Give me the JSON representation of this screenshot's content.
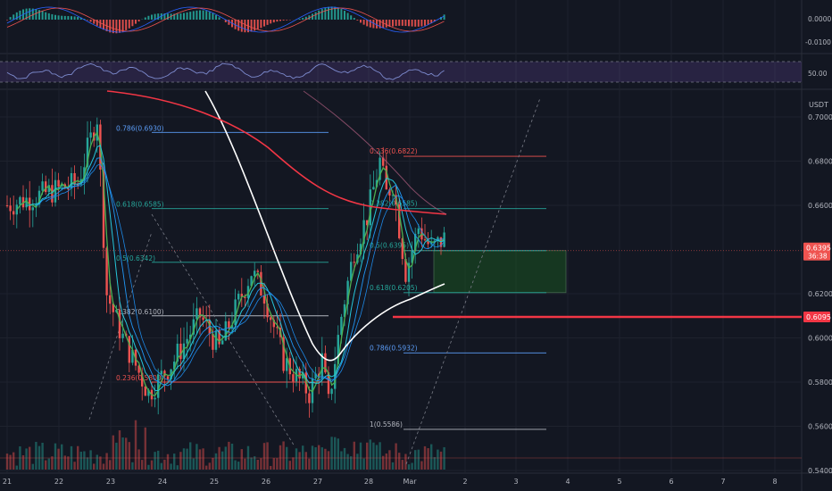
{
  "chart": {
    "currency_label": "USDT",
    "price_ticks": [
      "0.7000",
      "0.6800",
      "0.6600",
      "0.6200",
      "0.6000",
      "0.5800",
      "0.5600",
      "0.5400"
    ],
    "price_tick_values": [
      0.7,
      0.68,
      0.66,
      0.62,
      0.6,
      0.58,
      0.56,
      0.54
    ],
    "last_price_tag": "0.6395",
    "last_price_subtag": "36:38",
    "level_tag": "0.6095",
    "macd_ticks": [
      "0.0000",
      "-0.0100"
    ],
    "rsi_tick": "50.00",
    "time_labels": [
      "21",
      "22",
      "23",
      "24",
      "25",
      "26",
      "27",
      "28",
      "Mar",
      "2",
      "3",
      "4",
      "5",
      "6",
      "7",
      "8"
    ],
    "colors": {
      "background": "#131722",
      "bull": "#26a69a",
      "bear": "#ef5350",
      "level_line": "#f23645",
      "rsi_band": "#7e57c2",
      "sma_white": "#ffffff",
      "ema_red": "#f23645",
      "green_ma": "#4caf50",
      "teal_ma": "#26c6da",
      "fib_blue": "#2962ff"
    },
    "fib_set_left": [
      {
        "label": "0.786(0.6930)",
        "price": 0.693,
        "color": "#5b9cf6"
      },
      {
        "label": "0.618(0.6585)",
        "price": 0.6585,
        "color": "#26a69a"
      },
      {
        "label": "0.5(0.6342)",
        "price": 0.6342,
        "color": "#26a69a"
      },
      {
        "label": "0.382(0.6100)",
        "price": 0.61,
        "color": "#b2b5be"
      },
      {
        "label": "0.236(0.5800)",
        "price": 0.58,
        "color": "#ef5350"
      }
    ],
    "fib_set_right": [
      {
        "label": "0.236(0.6822)",
        "price": 0.6822,
        "color": "#ef5350"
      },
      {
        "label": "0.382(0.6585)",
        "price": 0.6585,
        "color": "#26a69a"
      },
      {
        "label": "0.5(0.6395)",
        "price": 0.6395,
        "color": "#26a69a"
      },
      {
        "label": "0.618(0.6205)",
        "price": 0.6205,
        "color": "#26a69a"
      },
      {
        "label": "0.786(0.5932)",
        "price": 0.5932,
        "color": "#5b9cf6"
      },
      {
        "label": "1(0.5586)",
        "price": 0.5586,
        "color": "#b2b5be"
      }
    ]
  }
}
